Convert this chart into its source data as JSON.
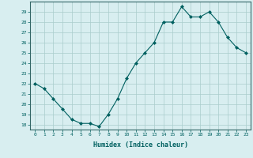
{
  "x": [
    0,
    1,
    2,
    3,
    4,
    5,
    6,
    7,
    8,
    9,
    10,
    11,
    12,
    13,
    14,
    15,
    16,
    17,
    18,
    19,
    20,
    21,
    22,
    23
  ],
  "y": [
    22,
    21.5,
    20.5,
    19.5,
    18.5,
    18.1,
    18.1,
    17.8,
    19,
    20.5,
    22.5,
    24,
    25,
    26,
    28,
    28,
    29.5,
    28.5,
    28.5,
    29,
    28,
    26.5,
    25.5,
    25
  ],
  "xlabel": "Humidex (Indice chaleur)",
  "ylabel": "",
  "ylim": [
    17.5,
    30
  ],
  "xlim": [
    -0.5,
    23.5
  ],
  "yticks": [
    18,
    19,
    20,
    21,
    22,
    23,
    24,
    25,
    26,
    27,
    28,
    29
  ],
  "xticks": [
    0,
    1,
    2,
    3,
    4,
    5,
    6,
    7,
    8,
    9,
    10,
    11,
    12,
    13,
    14,
    15,
    16,
    17,
    18,
    19,
    20,
    21,
    22,
    23
  ],
  "xtick_labels": [
    "0",
    "1",
    "2",
    "3",
    "4",
    "5",
    "6",
    "7",
    "8",
    "9",
    "10",
    "11",
    "12",
    "13",
    "14",
    "15",
    "16",
    "17",
    "18",
    "19",
    "20",
    "21",
    "22",
    "23"
  ],
  "line_color": "#006060",
  "marker_color": "#006060",
  "bg_color": "#d8eef0",
  "grid_color": "#aacccc",
  "axis_color": "#336666",
  "tick_color": "#006060",
  "label_color": "#006060"
}
